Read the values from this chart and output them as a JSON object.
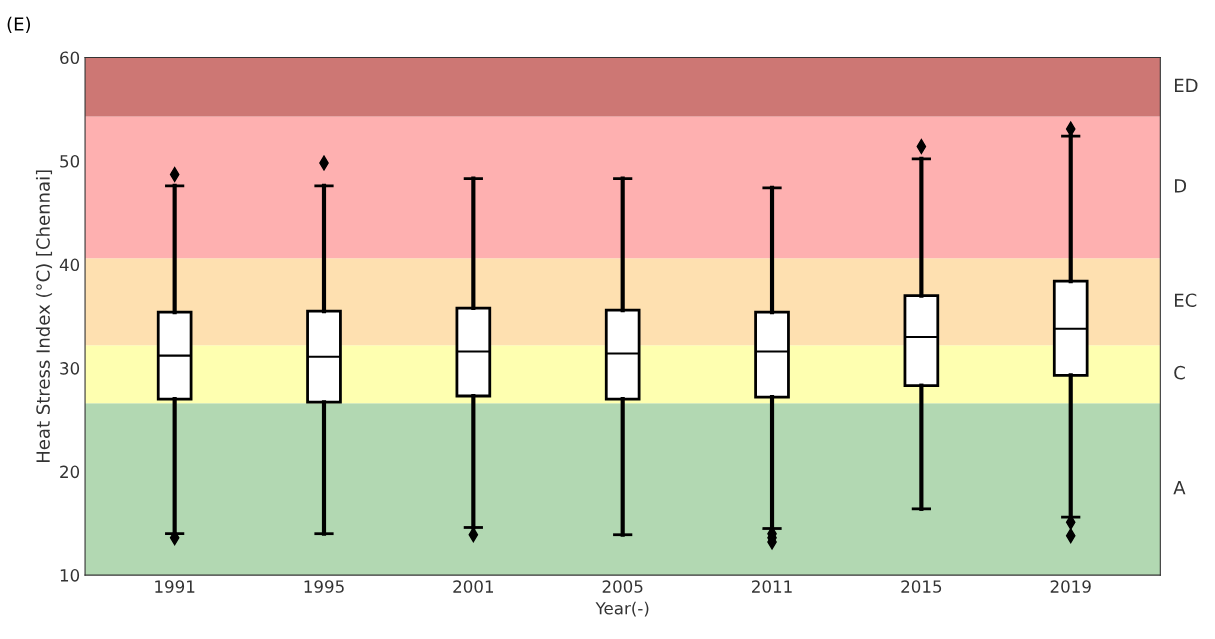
{
  "chart_data": {
    "type": "box",
    "title": "(E)",
    "xlabel": "Year(-)",
    "ylabel": "Heat Stress Index (°C) [Chennai]",
    "categories": [
      "1991",
      "1995",
      "2001",
      "2005",
      "2011",
      "2015",
      "2019"
    ],
    "boxes": [
      {
        "low": 14.0,
        "q1": 27.0,
        "median": 31.2,
        "q3": 35.4,
        "high": 47.6,
        "outliers": [
          48.7,
          13.6
        ]
      },
      {
        "low": 14.0,
        "q1": 26.7,
        "median": 31.1,
        "q3": 35.5,
        "high": 47.6,
        "outliers": [
          49.8
        ]
      },
      {
        "low": 14.6,
        "q1": 27.3,
        "median": 31.6,
        "q3": 35.8,
        "high": 48.3,
        "outliers": [
          13.9
        ]
      },
      {
        "low": 13.9,
        "q1": 27.0,
        "median": 31.4,
        "q3": 35.6,
        "high": 48.3
      },
      {
        "low": 14.5,
        "q1": 27.2,
        "median": 31.6,
        "q3": 35.4,
        "high": 47.4,
        "outliers": [
          14.0,
          13.6,
          13.2
        ]
      },
      {
        "low": 16.4,
        "q1": 28.3,
        "median": 33.0,
        "q3": 37.0,
        "high": 50.2,
        "outliers": [
          51.4
        ]
      },
      {
        "low": 15.6,
        "q1": 29.3,
        "median": 33.8,
        "q3": 38.4,
        "high": 52.4,
        "outliers": [
          53.1,
          15.1,
          13.8
        ]
      }
    ],
    "ylim": [
      10,
      60
    ],
    "yticks": [
      10,
      20,
      30,
      40,
      50,
      60
    ],
    "grid": false,
    "bands": [
      {
        "axis": "y",
        "from": 10,
        "to": 26.6,
        "label": "A",
        "color": "#b2d8b2"
      },
      {
        "axis": "y",
        "from": 26.6,
        "to": 32.2,
        "label": "C",
        "color": "#feffb0"
      },
      {
        "axis": "y",
        "from": 32.2,
        "to": 40.6,
        "label": "EC",
        "color": "#fee0b0"
      },
      {
        "axis": "y",
        "from": 40.6,
        "to": 54.3,
        "label": "D",
        "color": "#feb0b0"
      },
      {
        "axis": "y",
        "from": 54.3,
        "to": 60,
        "label": "ED",
        "color": "#cd7774"
      }
    ]
  }
}
